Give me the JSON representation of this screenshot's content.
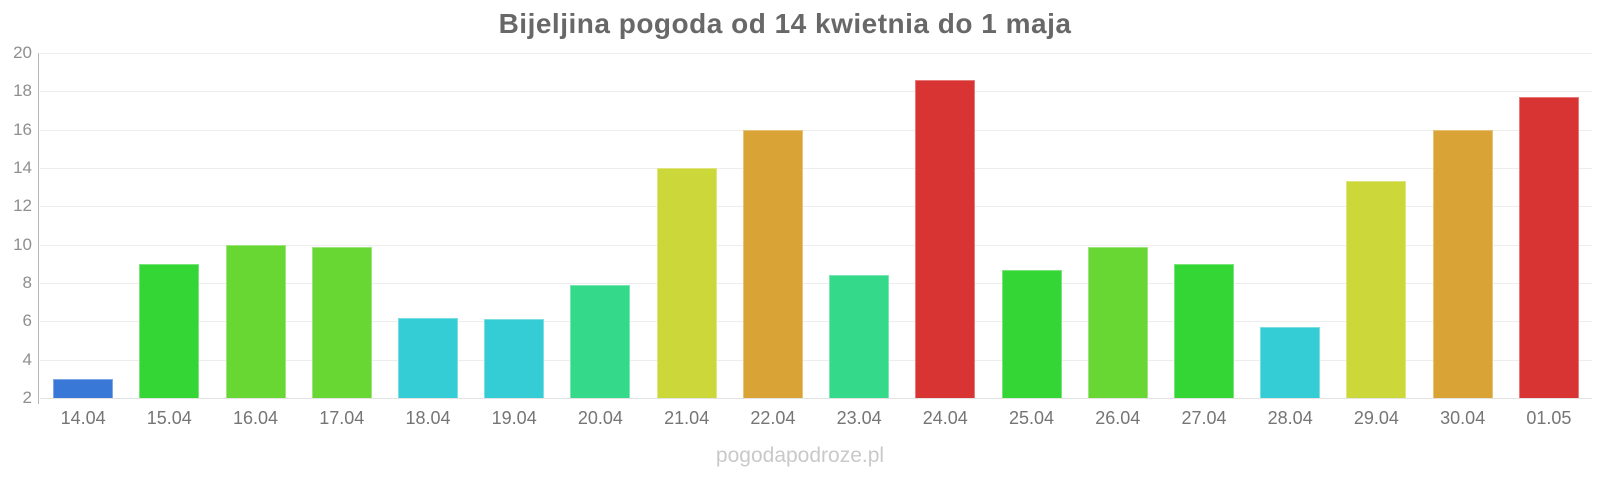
{
  "header": {
    "title": "Bijeljina pogoda od 14 kwietnia do 1 maja"
  },
  "footer": {
    "watermark": "pogodapodroze.pl"
  },
  "chart_data": {
    "type": "bar",
    "title": "Bijeljina pogoda od 14 kwietnia do 1 maja",
    "xlabel": "",
    "ylabel": "",
    "categories": [
      "14.04",
      "15.04",
      "16.04",
      "17.04",
      "18.04",
      "19.04",
      "20.04",
      "21.04",
      "22.04",
      "23.04",
      "24.04",
      "25.04",
      "26.04",
      "27.04",
      "28.04",
      "29.04",
      "30.04",
      "01.05"
    ],
    "values": [
      3.0,
      9.0,
      10.0,
      9.9,
      6.2,
      6.1,
      7.9,
      14.0,
      16.0,
      8.4,
      18.6,
      8.7,
      9.9,
      9.0,
      5.7,
      13.3,
      16.0,
      17.7
    ],
    "bar_colors": [
      "#3a78d8",
      "#33d634",
      "#68d733",
      "#68d733",
      "#34ccd5",
      "#34ccd5",
      "#35d98a",
      "#ccd83a",
      "#d9a435",
      "#35d98a",
      "#d93434",
      "#33d634",
      "#68d733",
      "#33d634",
      "#34ccd5",
      "#ccd83a",
      "#d9a435",
      "#d93434"
    ],
    "ylim": [
      2,
      20
    ],
    "yticks": [
      2,
      4,
      6,
      8,
      10,
      12,
      14,
      16,
      18,
      20
    ],
    "grid": true,
    "legend_position": "none",
    "axis_color": "#b5b5b5",
    "gridline_color": "#ededed",
    "watermark": "pogodapodroze.pl"
  }
}
